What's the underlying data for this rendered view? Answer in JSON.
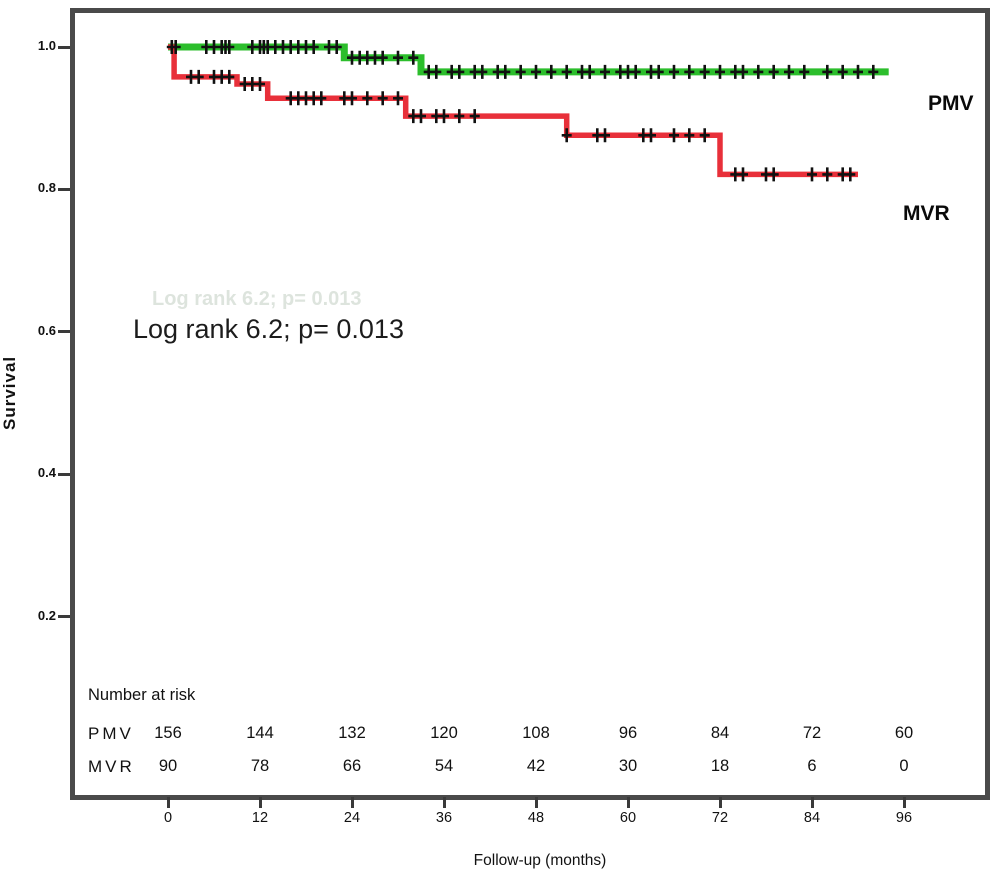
{
  "chart_data": {
    "type": "line",
    "subtype": "kaplan-meier-step",
    "title": "",
    "xlabel": "Follow-up (months)",
    "ylabel": "Survival",
    "annotation": "Log rank 6.2; p= 0.013",
    "xlim": [
      0,
      96
    ],
    "ylim": [
      0.12,
      1.04
    ],
    "xticks": [
      0,
      12,
      24,
      36,
      48,
      60,
      72,
      84,
      96
    ],
    "ytick_labels": [
      "1.0",
      "0.8",
      "0.6",
      "0.4",
      "0.2"
    ],
    "ytick_values": [
      1.0,
      0.8,
      0.6,
      0.4,
      0.2
    ],
    "grid": false,
    "legend_position": "inline-right",
    "censor_marker": "plus",
    "series": [
      {
        "name": "PMV",
        "color": "#2cbe2c",
        "stroke_width": 7,
        "steps": [
          [
            0,
            1.0
          ],
          [
            23,
            1.0
          ],
          [
            23,
            0.985
          ],
          [
            33,
            0.985
          ],
          [
            33,
            0.965
          ],
          [
            94,
            0.965
          ]
        ],
        "censor_months": [
          0.5,
          1,
          5,
          6,
          7,
          7.5,
          8,
          11,
          12,
          12.5,
          13,
          14,
          15,
          16,
          17,
          18,
          19,
          21,
          22,
          24,
          25,
          26,
          27,
          28,
          30,
          32,
          34,
          35,
          37,
          38,
          40,
          41,
          43,
          44,
          46,
          48,
          50,
          52,
          54,
          55,
          57,
          59,
          60,
          61,
          63,
          64,
          66,
          68,
          70,
          72,
          74,
          75,
          77,
          79,
          81,
          83,
          86,
          88,
          90,
          92
        ]
      },
      {
        "name": "MVR",
        "color": "#e8303a",
        "stroke_width": 5.5,
        "steps": [
          [
            0,
            1.0
          ],
          [
            0.8,
            1.0
          ],
          [
            0.8,
            0.958
          ],
          [
            9,
            0.958
          ],
          [
            9,
            0.948
          ],
          [
            13,
            0.948
          ],
          [
            13,
            0.928
          ],
          [
            31,
            0.928
          ],
          [
            31,
            0.903
          ],
          [
            52,
            0.903
          ],
          [
            52,
            0.876
          ],
          [
            72,
            0.876
          ],
          [
            72,
            0.821
          ],
          [
            90,
            0.821
          ]
        ],
        "censor_months": [
          3,
          4,
          6,
          7,
          8,
          10,
          11,
          12,
          16,
          17,
          18,
          19,
          20,
          23,
          24,
          26,
          28,
          30,
          32,
          33,
          35,
          36,
          38,
          40,
          52,
          56,
          57,
          62,
          63,
          66,
          68,
          70,
          74,
          75,
          78,
          79,
          84,
          86,
          88,
          89
        ]
      }
    ],
    "risk_table": {
      "title": "Number at risk",
      "rows": [
        {
          "label": "PMV",
          "values": [
            156,
            144,
            132,
            120,
            108,
            96,
            84,
            72,
            60
          ]
        },
        {
          "label": "MVR",
          "values": [
            90,
            78,
            66,
            54,
            42,
            30,
            18,
            6,
            0
          ]
        }
      ]
    }
  }
}
